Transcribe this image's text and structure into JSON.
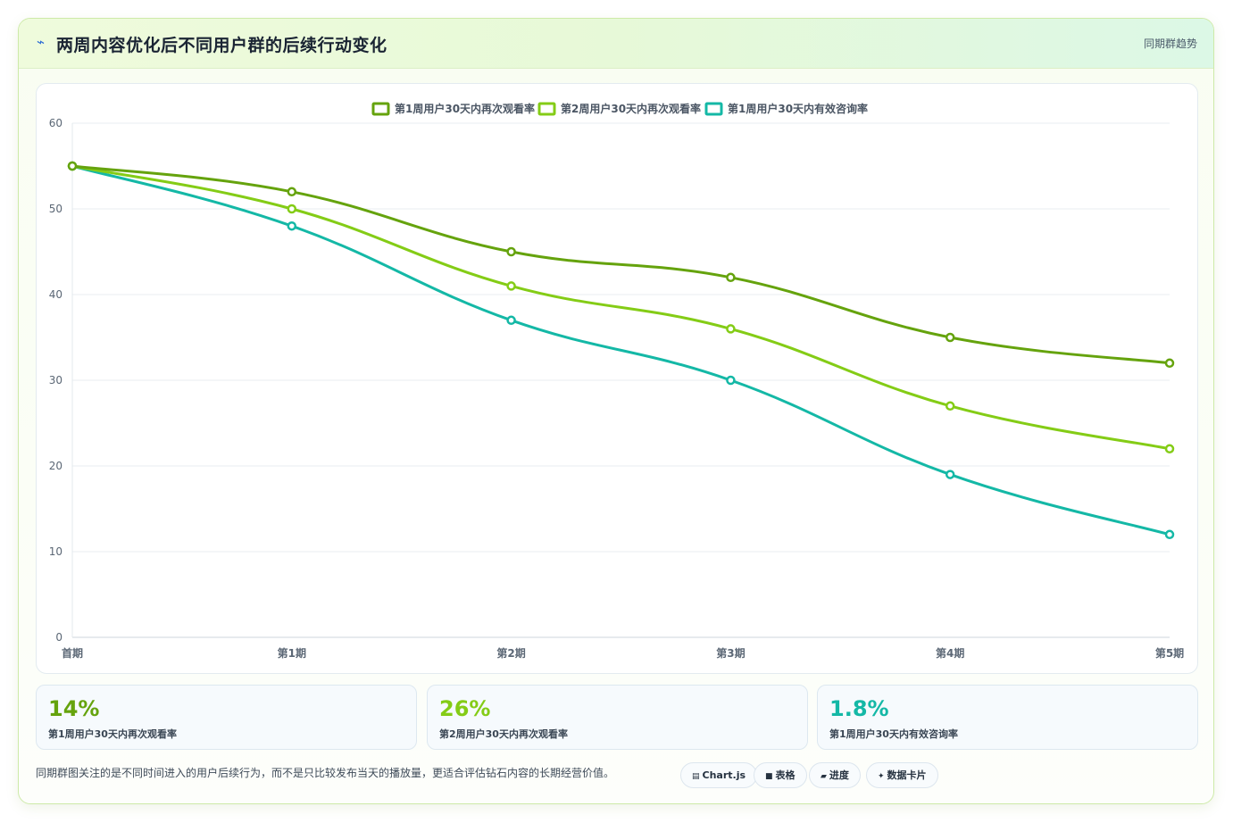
{
  "header": {
    "title": "两周内容优化后不同用户群的后续行动变化",
    "tag": "同期群趋势",
    "icon": "lightning-icon"
  },
  "chart_data": {
    "type": "line",
    "categories": [
      "首期",
      "第1期",
      "第2期",
      "第3期",
      "第4期",
      "第5期"
    ],
    "ylim": [
      0,
      60
    ],
    "yticks": [
      0,
      10,
      20,
      30,
      40,
      50,
      60
    ],
    "grid": true,
    "legend_position": "top",
    "series": [
      {
        "name": "第1周用户30天内再次观看率",
        "color": "#65a30d",
        "values": [
          55,
          52,
          45,
          42,
          35,
          32
        ]
      },
      {
        "name": "第2周用户30天内再次观看率",
        "color": "#84cc16",
        "values": [
          55,
          50,
          41,
          36,
          27,
          22
        ]
      },
      {
        "name": "第1周用户30天内有效咨询率",
        "color": "#14b8a6",
        "values": [
          55,
          48,
          37,
          30,
          19,
          12
        ]
      }
    ]
  },
  "stats": [
    {
      "value": "14%",
      "label": "第1周用户30天内再次观看率",
      "color": "#65a30d"
    },
    {
      "value": "26%",
      "label": "第2周用户30天内再次观看率",
      "color": "#84cc16"
    },
    {
      "value": "1.8%",
      "label": "第1周用户30天内有效咨询率",
      "color": "#14b8a6"
    }
  ],
  "footnote": "同期群图关注的是不同时间进入的用户后续行为，而不是只比较发布当天的播放量，更适合评估钻石内容的长期经营价值。",
  "chips": [
    {
      "label": "Chart.js",
      "icon": "chart-icon"
    },
    {
      "label": "表格",
      "icon": "table-icon"
    },
    {
      "label": "进度",
      "icon": "progress-icon"
    },
    {
      "label": "数据卡片",
      "icon": "sparkle-icon"
    }
  ]
}
